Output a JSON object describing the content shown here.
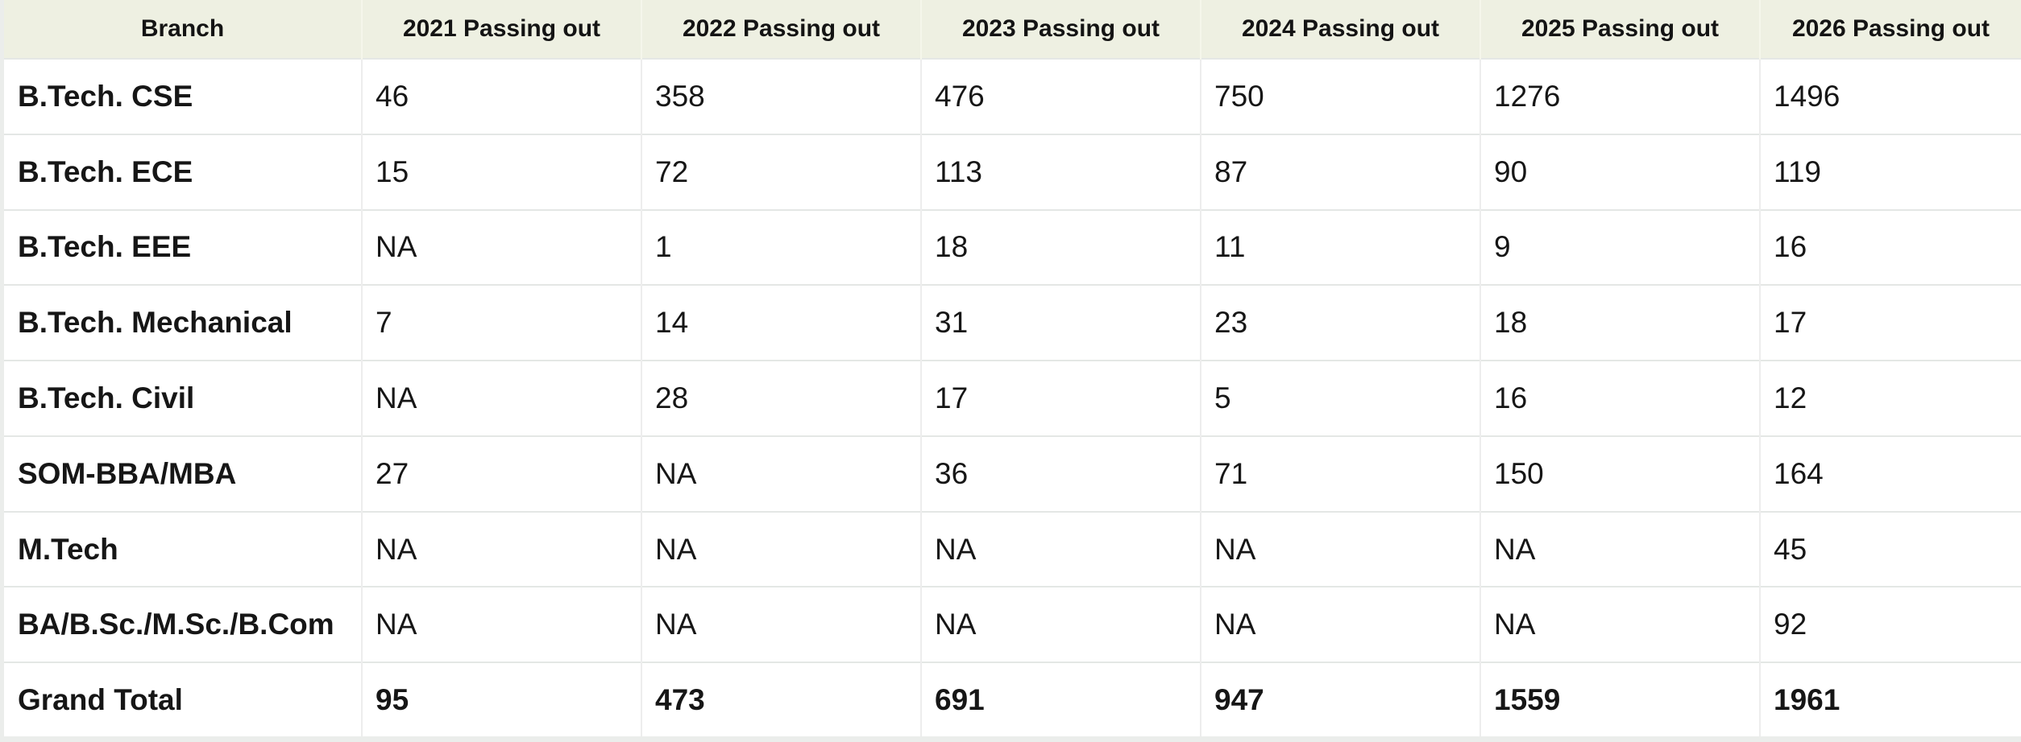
{
  "table": {
    "columns": [
      "Branch",
      "2021 Passing out",
      "2022 Passing out",
      "2023 Passing out",
      "2024 Passing out",
      "2025 Passing out",
      "2026 Passing out"
    ],
    "rows": [
      {
        "branch": "B.Tech. CSE",
        "values": [
          "46",
          "358",
          "476",
          "750",
          "1276",
          "1496"
        ],
        "is_total": false
      },
      {
        "branch": "B.Tech. ECE",
        "values": [
          "15",
          "72",
          "113",
          "87",
          "90",
          "119"
        ],
        "is_total": false
      },
      {
        "branch": "B.Tech. EEE",
        "values": [
          "NA",
          "1",
          "18",
          "11",
          "9",
          "16"
        ],
        "is_total": false
      },
      {
        "branch": "B.Tech. Mechanical",
        "values": [
          "7",
          "14",
          "31",
          "23",
          "18",
          "17"
        ],
        "is_total": false
      },
      {
        "branch": "B.Tech. Civil",
        "values": [
          "NA",
          "28",
          "17",
          "5",
          "16",
          "12"
        ],
        "is_total": false
      },
      {
        "branch": "SOM-BBA/MBA",
        "values": [
          "27",
          "NA",
          "36",
          "71",
          "150",
          "164"
        ],
        "is_total": false
      },
      {
        "branch": "M.Tech",
        "values": [
          "NA",
          "NA",
          "NA",
          "NA",
          "NA",
          "45"
        ],
        "is_total": false
      },
      {
        "branch": "BA/B.Sc./M.Sc./B.Com",
        "values": [
          "NA",
          "NA",
          "NA",
          "NA",
          "NA",
          "92"
        ],
        "is_total": false
      },
      {
        "branch": "Grand Total",
        "values": [
          "95",
          "473",
          "691",
          "947",
          "1559",
          "1961"
        ],
        "is_total": true
      }
    ]
  },
  "chart_data": {
    "type": "table",
    "title": "",
    "columns": [
      "Branch",
      "2021 Passing out",
      "2022 Passing out",
      "2023 Passing out",
      "2024 Passing out",
      "2025 Passing out",
      "2026 Passing out"
    ],
    "categories": [
      "B.Tech. CSE",
      "B.Tech. ECE",
      "B.Tech. EEE",
      "B.Tech. Mechanical",
      "B.Tech. Civil",
      "SOM-BBA/MBA",
      "M.Tech",
      "BA/B.Sc./M.Sc./B.Com",
      "Grand Total"
    ],
    "series": [
      {
        "name": "2021 Passing out",
        "values": [
          "46",
          "15",
          "NA",
          "7",
          "NA",
          "27",
          "NA",
          "NA",
          "95"
        ]
      },
      {
        "name": "2022 Passing out",
        "values": [
          "358",
          "72",
          "1",
          "14",
          "28",
          "NA",
          "NA",
          "NA",
          "473"
        ]
      },
      {
        "name": "2023 Passing out",
        "values": [
          "476",
          "113",
          "18",
          "31",
          "17",
          "36",
          "NA",
          "NA",
          "691"
        ]
      },
      {
        "name": "2024 Passing out",
        "values": [
          "750",
          "87",
          "11",
          "23",
          "5",
          "71",
          "NA",
          "NA",
          "947"
        ]
      },
      {
        "name": "2025 Passing out",
        "values": [
          "1276",
          "90",
          "9",
          "18",
          "16",
          "150",
          "NA",
          "NA",
          "1559"
        ]
      },
      {
        "name": "2026 Passing out",
        "values": [
          "1496",
          "119",
          "16",
          "17",
          "12",
          "164",
          "45",
          "92",
          "1961"
        ]
      }
    ]
  },
  "colors": {
    "page_bg": "#ebedeb",
    "header_bg": "#eef0e2",
    "header_divider": "#f5f6eb",
    "row_border": "#e4e7e5",
    "col_divider": "#ededed",
    "header_text": "#141414",
    "body_text": "#161616"
  }
}
